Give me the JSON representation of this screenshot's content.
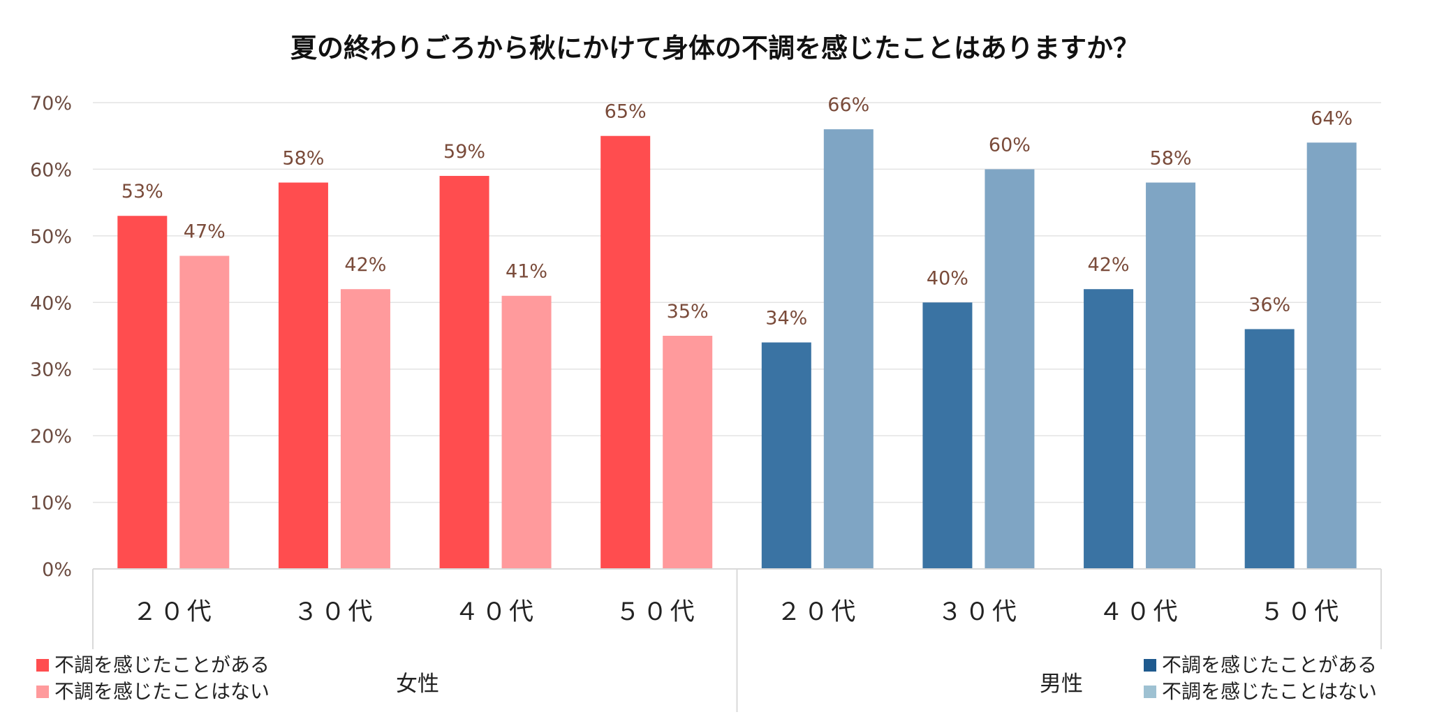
{
  "chart_data": {
    "type": "bar",
    "title": "夏の終わりごろから秋にかけて身体の不調を感じたことはありますか？",
    "y_ticks": [
      "0%",
      "10%",
      "20%",
      "30%",
      "40%",
      "50%",
      "60%",
      "70%"
    ],
    "ylim": [
      0,
      70
    ],
    "grid": true,
    "categories": [
      "２０代",
      "３０代",
      "４０代",
      "５０代",
      "２０代",
      "３０代",
      "４０代",
      "５０代"
    ],
    "groups": [
      {
        "name": "女性",
        "categories": [
          "２０代",
          "３０代",
          "４０代",
          "５０代"
        ],
        "series": [
          {
            "name": "不調を感じたことがある",
            "color": "#ff4d4f",
            "values": [
              53,
              58,
              59,
              65
            ],
            "labels": [
              "53%",
              "58%",
              "59%",
              "65%"
            ]
          },
          {
            "name": "不調を感じたことはない",
            "color": "#ff9a9c",
            "values": [
              47,
              42,
              41,
              35
            ],
            "labels": [
              "47%",
              "42%",
              "41%",
              "35%"
            ]
          }
        ],
        "legend_position": "bottom-left"
      },
      {
        "name": "男性",
        "categories": [
          "２０代",
          "３０代",
          "４０代",
          "５０代"
        ],
        "series": [
          {
            "name": "不調を感じたことがある",
            "color": "#3a73a3",
            "values": [
              34,
              40,
              42,
              36
            ],
            "labels": [
              "34%",
              "40%",
              "42%",
              "36%"
            ]
          },
          {
            "name": "不調を感じたことはない",
            "color": "#7fa5c4",
            "values": [
              66,
              60,
              58,
              64
            ],
            "labels": [
              "66%",
              "60%",
              "58%",
              "64%"
            ]
          }
        ],
        "legend_position": "bottom-right",
        "legend_colors": [
          "#1f5a8e",
          "#9ec1d2"
        ]
      }
    ]
  }
}
